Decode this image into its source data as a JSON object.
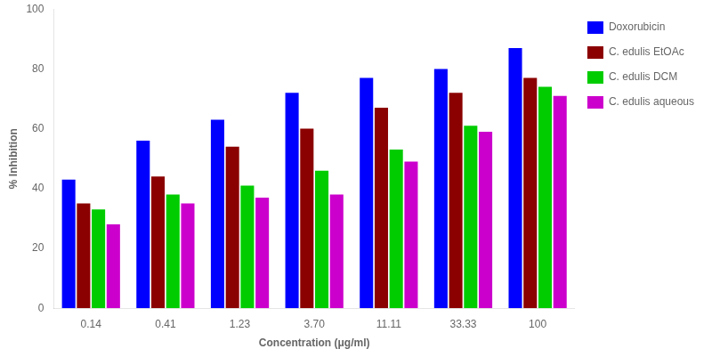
{
  "chart_data": {
    "type": "bar",
    "categories": [
      "0.14",
      "0.41",
      "1.23",
      "3.70",
      "11.11",
      "33.33",
      "100"
    ],
    "series": [
      {
        "name": "Doxorubicin",
        "color": "#0000FF",
        "values": [
          43,
          56,
          63,
          72,
          77,
          80,
          87
        ]
      },
      {
        "name": "C. edulis EtOAc",
        "color": "#8B0000",
        "values": [
          35,
          44,
          54,
          60,
          67,
          72,
          77
        ]
      },
      {
        "name": "C. edulis DCM",
        "color": "#00CC00",
        "values": [
          33,
          38,
          41,
          46,
          53,
          61,
          74
        ]
      },
      {
        "name": "C. edulis aqueous",
        "color": "#CC00CC",
        "values": [
          28,
          35,
          37,
          38,
          49,
          59,
          71
        ]
      }
    ],
    "xlabel": "Concentration (μg/ml)",
    "ylabel": "% Inhibition",
    "ylim": [
      0,
      100
    ],
    "yticks": [
      0,
      20,
      40,
      60,
      80,
      100
    ],
    "grid": false,
    "legend": "right"
  }
}
